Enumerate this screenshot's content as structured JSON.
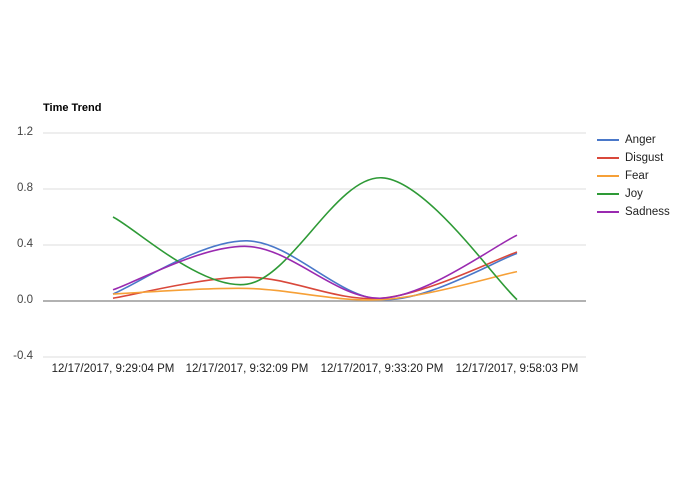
{
  "chart_data": {
    "type": "line",
    "title": "Time Trend",
    "xlabel": "",
    "ylabel": "",
    "ylim": [
      -0.4,
      1.2
    ],
    "yticks": [
      "1.2",
      "0.8",
      "0.4",
      "0.0",
      "-0.4"
    ],
    "grid": true,
    "smooth": true,
    "legend_position": "right",
    "categories": [
      "12/17/2017, 9:29:04 PM",
      "12/17/2017, 9:32:09 PM",
      "12/17/2017, 9:33:20 PM",
      "12/17/2017, 9:58:03 PM"
    ],
    "series": [
      {
        "name": "Anger",
        "color": "#4a78c9",
        "values": [
          0.05,
          0.43,
          0.01,
          0.34
        ]
      },
      {
        "name": "Disgust",
        "color": "#d9483b",
        "values": [
          0.02,
          0.17,
          0.02,
          0.35
        ]
      },
      {
        "name": "Fear",
        "color": "#f6a037",
        "values": [
          0.05,
          0.09,
          0.01,
          0.21
        ]
      },
      {
        "name": "Joy",
        "color": "#2e9a36",
        "values": [
          0.6,
          0.12,
          0.88,
          0.01
        ]
      },
      {
        "name": "Sadness",
        "color": "#9a2ab0",
        "values": [
          0.08,
          0.39,
          0.02,
          0.47
        ]
      }
    ]
  }
}
